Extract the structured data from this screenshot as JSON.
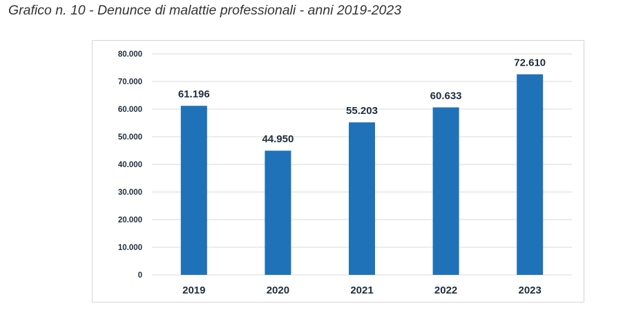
{
  "chart_data": {
    "type": "bar",
    "title": "Grafico n. 10 - Denunce di malattie professionali - anni 2019-2023",
    "categories": [
      "2019",
      "2020",
      "2021",
      "2022",
      "2023"
    ],
    "values": [
      61196,
      44950,
      55203,
      60633,
      72610
    ],
    "data_labels": [
      "61.196",
      "44.950",
      "55.203",
      "60.633",
      "72.610"
    ],
    "y_ticks": [
      0,
      10000,
      20000,
      30000,
      40000,
      50000,
      60000,
      70000,
      80000
    ],
    "y_tick_labels": [
      "0",
      "10.000",
      "20.000",
      "30.000",
      "40.000",
      "50.000",
      "60.000",
      "70.000",
      "80.000"
    ],
    "ylim": [
      0,
      80000
    ],
    "grid": true,
    "legend": "none",
    "bar_color": "#1f72b8",
    "grid_color": "#d9d9d9"
  }
}
